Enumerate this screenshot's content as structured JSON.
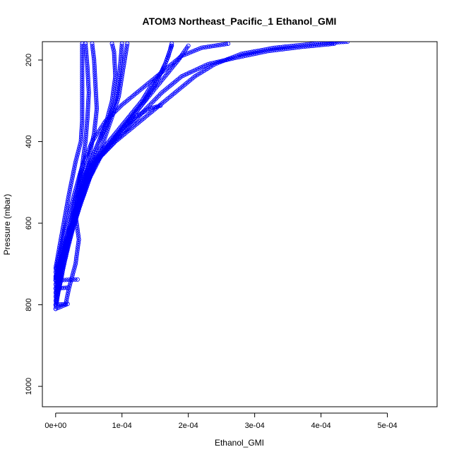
{
  "chart_data": {
    "type": "scatter",
    "title": "ATOM3 Northeast_Pacific_1 Ethanol_GMI",
    "xlabel": "Ethanol_GMI",
    "ylabel": "Pressure (mbar)",
    "xlim": [
      -2e-05,
      0.000575
    ],
    "ylim": [
      1050,
      155
    ],
    "y_reversed": true,
    "grid": false,
    "legend": "none",
    "marker": "open-circle",
    "connect_points": true,
    "series_color": "#0000ff",
    "x_ticks": [
      {
        "value": 0,
        "label": "0e+00"
      },
      {
        "value": 0.0001,
        "label": "1e-04"
      },
      {
        "value": 0.0002,
        "label": "2e-04"
      },
      {
        "value": 0.0003,
        "label": "3e-04"
      },
      {
        "value": 0.0004,
        "label": "4e-04"
      },
      {
        "value": 0.0005,
        "label": "5e-04"
      }
    ],
    "y_ticks": [
      {
        "value": 200,
        "label": "200"
      },
      {
        "value": 400,
        "label": "400"
      },
      {
        "value": 600,
        "label": "600"
      },
      {
        "value": 800,
        "label": "800"
      },
      {
        "value": 1000,
        "label": "1000"
      }
    ],
    "series": [
      {
        "points": [
          [
            0.0,
            810
          ],
          [
            5e-06,
            760
          ],
          [
            1e-05,
            700
          ],
          [
            2e-05,
            620
          ],
          [
            3e-05,
            540
          ],
          [
            4e-05,
            460
          ],
          [
            4.5e-05,
            400
          ],
          [
            4.8e-05,
            340
          ],
          [
            5e-05,
            280
          ],
          [
            4.8e-05,
            220
          ],
          [
            4.5e-05,
            160
          ]
        ]
      },
      {
        "points": [
          [
            0.0,
            800
          ],
          [
            8e-06,
            740
          ],
          [
            1.5e-05,
            680
          ],
          [
            2.5e-05,
            600
          ],
          [
            4e-05,
            500
          ],
          [
            5e-05,
            440
          ],
          [
            5.8e-05,
            380
          ],
          [
            6.2e-05,
            320
          ],
          [
            6e-05,
            260
          ],
          [
            5.8e-05,
            200
          ],
          [
            5.5e-05,
            160
          ]
        ]
      },
      {
        "points": [
          [
            0.0,
            790
          ],
          [
            1e-05,
            720
          ],
          [
            2e-05,
            650
          ],
          [
            3e-05,
            580
          ],
          [
            4.5e-05,
            480
          ],
          [
            6e-05,
            420
          ],
          [
            7.5e-05,
            360
          ],
          [
            8.5e-05,
            300
          ],
          [
            9e-05,
            240
          ],
          [
            8.8e-05,
            180
          ],
          [
            8.5e-05,
            160
          ]
        ]
      },
      {
        "points": [
          [
            0.0,
            780
          ],
          [
            1e-05,
            700
          ],
          [
            2e-05,
            630
          ],
          [
            3.5e-05,
            560
          ],
          [
            5e-05,
            470
          ],
          [
            7e-05,
            420
          ],
          [
            9e-05,
            380
          ],
          [
            0.00011,
            340
          ],
          [
            0.00013,
            300
          ],
          [
            0.000145,
            260
          ],
          [
            0.00016,
            230
          ],
          [
            0.00017,
            190
          ],
          [
            0.000175,
            160
          ]
        ]
      },
      {
        "points": [
          [
            0.0,
            770
          ],
          [
            1.2e-05,
            700
          ],
          [
            2.5e-05,
            620
          ],
          [
            4e-05,
            540
          ],
          [
            5.5e-05,
            460
          ],
          [
            8e-05,
            410
          ],
          [
            0.0001,
            370
          ],
          [
            0.00012,
            340
          ],
          [
            0.00014,
            320
          ],
          [
            0.000158,
            312
          ]
        ]
      },
      {
        "points": [
          [
            0.0,
            760
          ],
          [
            1.2e-05,
            690
          ],
          [
            2.5e-05,
            610
          ],
          [
            4.5e-05,
            520
          ],
          [
            6e-05,
            450
          ],
          [
            9e-05,
            400
          ],
          [
            0.00012,
            360
          ],
          [
            0.00015,
            320
          ],
          [
            0.00018,
            280
          ],
          [
            0.00021,
            240
          ],
          [
            0.00024,
            210
          ],
          [
            0.00028,
            185
          ],
          [
            0.00033,
            170
          ],
          [
            0.00039,
            160
          ],
          [
            0.00044,
            155
          ]
        ]
      },
      {
        "points": [
          [
            0.0,
            750
          ],
          [
            1.2e-05,
            680
          ],
          [
            2.5e-05,
            600
          ],
          [
            4.5e-05,
            510
          ],
          [
            6.5e-05,
            440
          ],
          [
            9.5e-05,
            390
          ],
          [
            0.00013,
            330
          ],
          [
            0.00016,
            280
          ],
          [
            0.00019,
            240
          ],
          [
            0.00023,
            210
          ],
          [
            0.00027,
            195
          ],
          [
            0.00032,
            178
          ],
          [
            0.00037,
            168
          ],
          [
            0.00042,
            160
          ]
        ]
      },
      {
        "points": [
          [
            0.0,
            740
          ],
          [
            1.2e-05,
            670
          ],
          [
            2.8e-05,
            590
          ],
          [
            4.8e-05,
            500
          ],
          [
            7e-05,
            430
          ],
          [
            0.0001,
            370
          ],
          [
            0.00013,
            310
          ],
          [
            0.00015,
            260
          ],
          [
            0.000165,
            210
          ],
          [
            0.000175,
            165
          ]
        ]
      },
      {
        "points": [
          [
            0.0,
            740
          ],
          [
            1.5e-05,
            660
          ],
          [
            3e-05,
            580
          ],
          [
            5e-05,
            480
          ],
          [
            7.5e-05,
            420
          ],
          [
            0.00011,
            350
          ],
          [
            0.00014,
            290
          ],
          [
            0.000165,
            240
          ],
          [
            0.000185,
            200
          ],
          [
            0.0002,
            165
          ]
        ]
      },
      {
        "points": [
          [
            0.0,
            735
          ],
          [
            1.5e-05,
            650
          ],
          [
            3.2e-05,
            560
          ],
          [
            5e-05,
            470
          ],
          [
            7e-05,
            410
          ],
          [
            8.5e-05,
            340
          ],
          [
            9.5e-05,
            290
          ],
          [
            0.0001,
            240
          ],
          [
            0.000105,
            190
          ],
          [
            0.000108,
            160
          ]
        ]
      },
      {
        "points": [
          [
            0.0,
            730
          ],
          [
            1.5e-05,
            640
          ],
          [
            3.2e-05,
            550
          ],
          [
            5e-05,
            460
          ],
          [
            6.5e-05,
            400
          ],
          [
            8e-05,
            350
          ],
          [
            9e-05,
            300
          ],
          [
            9.5e-05,
            250
          ],
          [
            9.8e-05,
            200
          ],
          [
            0.0001,
            160
          ]
        ]
      },
      {
        "points": [
          [
            0.0,
            720
          ],
          [
            1.2e-05,
            630
          ],
          [
            2.8e-05,
            530
          ],
          [
            4e-05,
            460
          ],
          [
            5.5e-05,
            400
          ],
          [
            7.5e-05,
            350
          ],
          [
            0.0001,
            310
          ],
          [
            0.00013,
            270
          ],
          [
            0.00016,
            230
          ],
          [
            0.00019,
            190
          ],
          [
            0.00022,
            170
          ],
          [
            0.00026,
            160
          ]
        ]
      },
      {
        "points": [
          [
            0.0,
            710
          ],
          [
            1e-05,
            620
          ],
          [
            2e-05,
            530
          ],
          [
            3e-05,
            450
          ],
          [
            3.8e-05,
            400
          ],
          [
            4e-05,
            350
          ],
          [
            4e-05,
            300
          ],
          [
            4e-05,
            250
          ],
          [
            4e-05,
            200
          ],
          [
            4e-05,
            160
          ]
        ]
      },
      {
        "points": [
          [
            0.0,
            810
          ],
          [
            1.5e-05,
            800
          ],
          [
            2e-05,
            760
          ],
          [
            3e-05,
            700
          ],
          [
            3.5e-05,
            640
          ],
          [
            3e-05,
            580
          ],
          [
            3.5e-05,
            520
          ],
          [
            4e-05,
            460
          ]
        ]
      },
      {
        "points": [
          [
            0.0,
            800
          ],
          [
            1.8e-05,
            798
          ]
        ]
      },
      {
        "points": [
          [
            0.0,
            760
          ],
          [
            1.8e-05,
            758
          ]
        ]
      },
      {
        "points": [
          [
            0.0,
            740
          ],
          [
            3.3e-05,
            738
          ]
        ]
      }
    ]
  }
}
